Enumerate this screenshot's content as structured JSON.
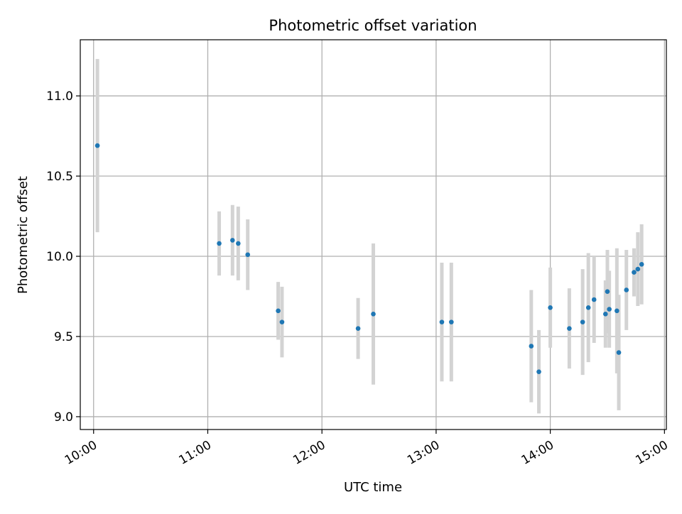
{
  "chart_data": {
    "type": "scatter",
    "title": "Photometric offset variation",
    "xlabel": "UTC time",
    "ylabel": "Photometric offset",
    "x_ticks": [
      "10:00",
      "11:00",
      "12:00",
      "13:00",
      "14:00",
      "15:00"
    ],
    "y_ticks": [
      "9.0",
      "9.5",
      "10.0",
      "10.5",
      "11.0"
    ],
    "xlim": [
      "09:53",
      "15:01"
    ],
    "ylim": [
      8.92,
      11.35
    ],
    "grid": true,
    "colors": {
      "marker": "#1f77b4",
      "errorbar": "#d3d3d3",
      "grid": "#b0b0b0"
    },
    "series": [
      {
        "points": [
          {
            "x": "10:02",
            "y": 10.69,
            "yerr": 0.54
          },
          {
            "x": "11:06",
            "y": 10.08,
            "yerr": 0.2
          },
          {
            "x": "11:13",
            "y": 10.1,
            "yerr": 0.22
          },
          {
            "x": "11:16",
            "y": 10.08,
            "yerr": 0.23
          },
          {
            "x": "11:21",
            "y": 10.01,
            "yerr": 0.22
          },
          {
            "x": "11:37",
            "y": 9.66,
            "yerr": 0.18
          },
          {
            "x": "11:39",
            "y": 9.59,
            "yerr": 0.22
          },
          {
            "x": "12:19",
            "y": 9.55,
            "yerr": 0.19
          },
          {
            "x": "12:27",
            "y": 9.64,
            "yerr": 0.44
          },
          {
            "x": "13:03",
            "y": 9.59,
            "yerr": 0.37
          },
          {
            "x": "13:08",
            "y": 9.59,
            "yerr": 0.37
          },
          {
            "x": "13:50",
            "y": 9.44,
            "yerr": 0.35
          },
          {
            "x": "13:54",
            "y": 9.28,
            "yerr": 0.26
          },
          {
            "x": "14:00",
            "y": 9.68,
            "yerr": 0.25
          },
          {
            "x": "14:10",
            "y": 9.55,
            "yerr": 0.25
          },
          {
            "x": "14:17",
            "y": 9.59,
            "yerr": 0.33
          },
          {
            "x": "14:20",
            "y": 9.68,
            "yerr": 0.34
          },
          {
            "x": "14:23",
            "y": 9.73,
            "yerr": 0.27
          },
          {
            "x": "14:29",
            "y": 9.64,
            "yerr": 0.21
          },
          {
            "x": "14:30",
            "y": 9.78,
            "yerr": 0.26
          },
          {
            "x": "14:31",
            "y": 9.67,
            "yerr": 0.24
          },
          {
            "x": "14:35",
            "y": 9.66,
            "yerr": 0.39
          },
          {
            "x": "14:36",
            "y": 9.4,
            "yerr": 0.36
          },
          {
            "x": "14:40",
            "y": 9.79,
            "yerr": 0.25
          },
          {
            "x": "14:44",
            "y": 9.9,
            "yerr": 0.15
          },
          {
            "x": "14:46",
            "y": 9.92,
            "yerr": 0.23
          },
          {
            "x": "14:48",
            "y": 9.95,
            "yerr": 0.25
          }
        ]
      }
    ]
  }
}
